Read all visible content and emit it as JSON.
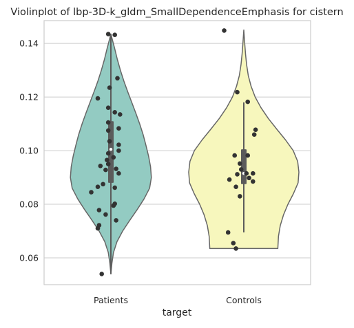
{
  "chart_data": {
    "type": "violin",
    "title": "Violinplot of lbp-3D-k_gldm_SmallDependenceEmphasis for cistern",
    "xlabel": "target",
    "ylabel": "",
    "ylim": [
      0.05,
      0.1485
    ],
    "y_ticks": [
      0.06,
      0.08,
      0.1,
      0.12,
      0.14
    ],
    "y_tick_labels": [
      "0.06",
      "0.08",
      "0.10",
      "0.12",
      "0.14"
    ],
    "grid": "horizontal",
    "legend": "none",
    "categories": [
      "Patients",
      "Controls"
    ],
    "series": [
      {
        "category": "Patients",
        "color": "#93cbc2",
        "range": [
          0.054,
          0.1435
        ],
        "q1": 0.088,
        "median": 0.1005,
        "q3": 0.111,
        "whiskers": [
          0.054,
          0.1435
        ],
        "density": [
          [
            0.054,
            0.0
          ],
          [
            0.058,
            0.5
          ],
          [
            0.062,
            1.3
          ],
          [
            0.066,
            3.0
          ],
          [
            0.07,
            5.8
          ],
          [
            0.074,
            9.3
          ],
          [
            0.078,
            13.0
          ],
          [
            0.082,
            16.4
          ],
          [
            0.086,
            19.1
          ],
          [
            0.09,
            20.0
          ],
          [
            0.094,
            19.6
          ],
          [
            0.098,
            18.6
          ],
          [
            0.102,
            17.3
          ],
          [
            0.106,
            15.9
          ],
          [
            0.11,
            14.2
          ],
          [
            0.114,
            12.3
          ],
          [
            0.118,
            10.3
          ],
          [
            0.122,
            8.3
          ],
          [
            0.126,
            6.4
          ],
          [
            0.13,
            4.7
          ],
          [
            0.134,
            3.2
          ],
          [
            0.138,
            1.9
          ],
          [
            0.1435,
            0.0
          ]
        ],
        "points": [
          [
            -0.02,
            0.1435
          ],
          [
            0.03,
            0.1432
          ],
          [
            0.05,
            0.127
          ],
          [
            -0.01,
            0.1235
          ],
          [
            -0.1,
            0.1195
          ],
          [
            -0.02,
            0.116
          ],
          [
            0.03,
            0.1143
          ],
          [
            0.07,
            0.1135
          ],
          [
            0.06,
            0.1083
          ],
          [
            -0.02,
            0.1105
          ],
          [
            -0.02,
            0.1075
          ],
          [
            -0.01,
            0.1035
          ],
          [
            0.06,
            0.1022
          ],
          [
            0.06,
            0.1
          ],
          [
            -0.02,
            0.099
          ],
          [
            0.02,
            0.0975
          ],
          [
            -0.03,
            0.0965
          ],
          [
            -0.02,
            0.095
          ],
          [
            -0.08,
            0.0943
          ],
          [
            0.04,
            0.0932
          ],
          [
            -0.04,
            0.0928
          ],
          [
            0.06,
            0.0915
          ],
          [
            -0.06,
            0.0875
          ],
          [
            -0.1,
            0.0865
          ],
          [
            0.03,
            0.0862
          ],
          [
            -0.15,
            0.0845
          ],
          [
            -0.09,
            0.0778
          ],
          [
            -0.04,
            0.0762
          ],
          [
            0.03,
            0.0802
          ],
          [
            0.02,
            0.0795
          ],
          [
            0.04,
            0.074
          ],
          [
            -0.09,
            0.0722
          ],
          [
            -0.1,
            0.071
          ],
          [
            -0.07,
            0.054
          ]
        ]
      },
      {
        "category": "Controls",
        "color": "#f7f7bd",
        "range": [
          0.0635,
          0.145
        ],
        "q1": 0.0875,
        "median": 0.0915,
        "q3": 0.1005,
        "whiskers": [
          0.0695,
          0.118
        ],
        "density": [
          [
            0.0635,
            16.8
          ],
          [
            0.068,
            17.1
          ],
          [
            0.072,
            18.0
          ],
          [
            0.076,
            19.6
          ],
          [
            0.08,
            21.8
          ],
          [
            0.084,
            24.5
          ],
          [
            0.088,
            26.8
          ],
          [
            0.092,
            27.2
          ],
          [
            0.096,
            26.6
          ],
          [
            0.1,
            24.4
          ],
          [
            0.104,
            20.6
          ],
          [
            0.108,
            16.3
          ],
          [
            0.112,
            12.1
          ],
          [
            0.116,
            8.5
          ],
          [
            0.12,
            5.6
          ],
          [
            0.124,
            3.6
          ],
          [
            0.128,
            2.2
          ],
          [
            0.132,
            1.4
          ],
          [
            0.136,
            0.85
          ],
          [
            0.14,
            0.45
          ],
          [
            0.145,
            0.0
          ]
        ],
        "points": [
          [
            -0.15,
            0.1448
          ],
          [
            -0.05,
            0.1218
          ],
          [
            0.03,
            0.1182
          ],
          [
            0.09,
            0.1078
          ],
          [
            0.08,
            0.106
          ],
          [
            -0.07,
            0.0982
          ],
          [
            0.03,
            0.0982
          ],
          [
            -0.03,
            0.0952
          ],
          [
            -0.02,
            0.093
          ],
          [
            0.02,
            0.0915
          ],
          [
            0.07,
            0.0915
          ],
          [
            -0.05,
            0.0912
          ],
          [
            0.04,
            0.0898
          ],
          [
            0.07,
            0.0885
          ],
          [
            -0.11,
            0.0892
          ],
          [
            -0.06,
            0.0865
          ],
          [
            -0.03,
            0.083
          ],
          [
            -0.12,
            0.0695
          ],
          [
            -0.08,
            0.0655
          ],
          [
            -0.06,
            0.0635
          ]
        ]
      }
    ]
  }
}
